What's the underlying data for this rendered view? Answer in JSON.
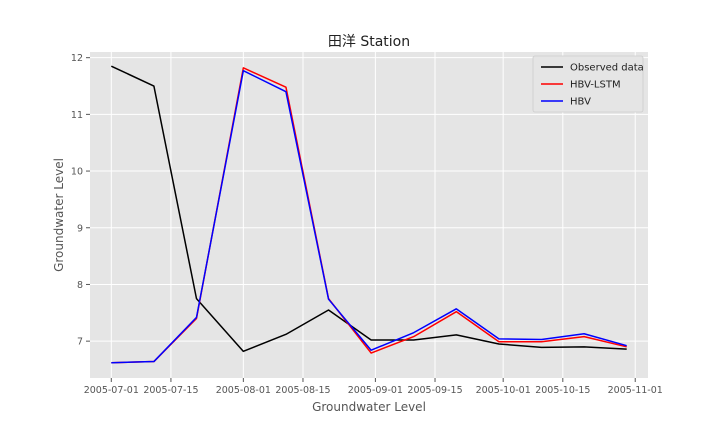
{
  "chart_data": {
    "type": "line",
    "title": "田洋 Station",
    "xlabel": "Groundwater Level",
    "ylabel": "Groundwater Level",
    "x": [
      "2005-07-01",
      "2005-07-11",
      "2005-07-21",
      "2005-08-01",
      "2005-08-11",
      "2005-08-21",
      "2005-08-31",
      "2005-09-10",
      "2005-09-20",
      "2005-09-30",
      "2005-10-10",
      "2005-10-20",
      "2005-10-30"
    ],
    "series": [
      {
        "name": "Observed data",
        "color": "#000000",
        "values": [
          11.85,
          11.5,
          7.75,
          6.82,
          7.12,
          7.55,
          7.02,
          7.02,
          7.11,
          6.95,
          6.89,
          6.9,
          6.86
        ]
      },
      {
        "name": "HBV-LSTM",
        "color": "#ff0000",
        "values": [
          6.62,
          6.64,
          7.4,
          11.82,
          11.48,
          7.75,
          6.79,
          7.08,
          7.52,
          6.99,
          6.99,
          7.08,
          6.9
        ]
      },
      {
        "name": "HBV",
        "color": "#0000ff",
        "values": [
          6.62,
          6.64,
          7.42,
          11.77,
          11.4,
          7.74,
          6.84,
          7.15,
          7.57,
          7.04,
          7.03,
          7.13,
          6.92
        ]
      }
    ],
    "xticks": [
      "2005-07-01",
      "2005-07-15",
      "2005-08-01",
      "2005-08-15",
      "2005-09-01",
      "2005-09-15",
      "2005-10-01",
      "2005-10-15",
      "2005-11-01"
    ],
    "yticks": [
      7,
      8,
      9,
      10,
      11,
      12
    ],
    "xlim": [
      "2005-06-26",
      "2005-11-04"
    ],
    "ylim": [
      6.35,
      12.1
    ],
    "grid": true,
    "legend_position": "top-right"
  }
}
